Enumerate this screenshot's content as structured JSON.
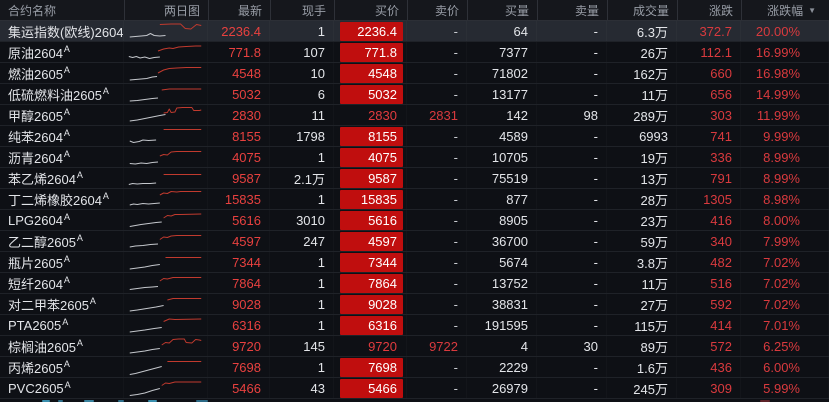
{
  "header": {
    "columns": [
      {
        "key": "name",
        "label": "合约名称"
      },
      {
        "key": "chart",
        "label": "两日图"
      },
      {
        "key": "latest",
        "label": "最新"
      },
      {
        "key": "cur_vol",
        "label": "现手"
      },
      {
        "key": "bid",
        "label": "买价"
      },
      {
        "key": "ask",
        "label": "卖价"
      },
      {
        "key": "bid_vol",
        "label": "买量"
      },
      {
        "key": "ask_vol",
        "label": "卖量"
      },
      {
        "key": "volume",
        "label": "成交量"
      },
      {
        "key": "change",
        "label": "涨跌"
      },
      {
        "key": "pct",
        "label": "涨跌幅"
      }
    ],
    "sort_icon": "▼",
    "sorted_by": "涨跌幅 descending"
  },
  "colors": {
    "background": "#0b0d10",
    "row_background": "#0e1015",
    "selected_row_background": "#262a32",
    "bid_fill_red": "#c00e0e",
    "up_red_text": "#d93a3e",
    "latest_red_text": "#e8413f",
    "white_text": "#e3e5e9",
    "header_text": "#989da6",
    "sparkline_day1": "#c5c8cd",
    "sparkline_day2": "#c13a2e"
  },
  "chart_data": {
    "type": "table",
    "title": "期货合约涨幅排行 (futures watchlist sorted by 涨跌幅)",
    "columns": [
      "合约名称",
      "最新",
      "现手",
      "买价",
      "卖价",
      "买量",
      "卖量",
      "成交量",
      "涨跌",
      "涨跌幅"
    ],
    "rows_summary": "18 contracts, all up (red), sorted by percent change 20.00% to 5.99%"
  },
  "rows": [
    {
      "name": "集运指数(欧线)2604",
      "sup": "A",
      "latest": "2236.4",
      "cur_vol": "1",
      "bid": "2236.4",
      "bid_filled": true,
      "ask": "-",
      "bid_vol": "64",
      "ask_vol": "-",
      "volume": "6.3万",
      "change": "372.7",
      "pct": "20.00%",
      "selected": true,
      "spark_gray": "4,16 10,15.5 16,15 22,14.5 26,12.5 30,14.5 36,15 42,14.5",
      "spark_red": "36,3.5 48,3 58,3 63,7.5 69,8 75,3.5 80,4.5"
    },
    {
      "name": "原油2604",
      "sup": "A",
      "latest": "771.8",
      "cur_vol": "107",
      "bid": "771.8",
      "bid_filled": true,
      "ask": "-",
      "bid_vol": "7377",
      "ask_vol": "-",
      "volume": "26万",
      "change": "112.1",
      "pct": "16.99%",
      "selected": false,
      "spark_gray": "3,14.5 7,15.5 11,14.5 15,16 20,15 25,16.5 30,15.5 36,15",
      "spark_red": "34,9 40,7 46,6 50,6.5 56,5 64,4.5 74,4 80,4"
    },
    {
      "name": "燃油2605",
      "sup": "A",
      "latest": "4548",
      "cur_vol": "10",
      "bid": "4548",
      "bid_filled": true,
      "ask": "-",
      "bid_vol": "71802",
      "ask_vol": "-",
      "volume": "162万",
      "change": "660",
      "pct": "16.98%",
      "selected": false,
      "spark_gray": "4,17 10,16.5 16,16 22,15.5 28,14 33,13.5",
      "spark_red": "34,10 40,7 46,5.5 54,5 64,4.5 80,4.5"
    },
    {
      "name": "低硫燃料油2605",
      "sup": "A",
      "latest": "5032",
      "cur_vol": "6",
      "bid": "5032",
      "bid_filled": true,
      "ask": "-",
      "bid_vol": "13177",
      "ask_vol": "-",
      "volume": "11万",
      "change": "656",
      "pct": "14.99%",
      "selected": false,
      "spark_gray": "4,17 12,16.5 20,15.5 28,14.5 34,14",
      "spark_red": "38,6 46,5 80,5"
    },
    {
      "name": "甲醇2605",
      "sup": "A",
      "latest": "2830",
      "cur_vol": "11",
      "bid": "2830",
      "bid_filled": false,
      "ask": "2831",
      "bid_vol": "142",
      "ask_vol": "98",
      "volume": "289万",
      "change": "303",
      "pct": "11.99%",
      "selected": false,
      "spark_gray": "4,16 12,15 20,13.5 28,12 36,10.5 42,9.5",
      "spark_red": "40,8 44,7.5 46,4 48,7.5 52,7 54,3 60,2.5 70,2.5 72,5.5 78,5.5 80,5"
    },
    {
      "name": "纯苯2604",
      "sup": "A",
      "latest": "8155",
      "cur_vol": "1798",
      "bid": "8155",
      "bid_filled": true,
      "ask": "-",
      "bid_vol": "4589",
      "ask_vol": "-",
      "volume": "6993",
      "change": "741",
      "pct": "9.99%",
      "selected": false,
      "spark_gray": "4,15 8,16.5 14,15.5 18,14 24,14.5 32,14",
      "spark_red": "40,3.5 80,3.5"
    },
    {
      "name": "沥青2604",
      "sup": "A",
      "latest": "4075",
      "cur_vol": "1",
      "bid": "4075",
      "bid_filled": true,
      "ask": "-",
      "bid_vol": "10705",
      "ask_vol": "-",
      "volume": "19万",
      "change": "336",
      "pct": "8.99%",
      "selected": false,
      "spark_gray": "4,16.5 10,17 16,16 22,16.5 28,15.5 34,15",
      "spark_red": "36,9 40,7.5 44,8 48,5 54,4.5 80,4.5"
    },
    {
      "name": "苯乙烯2604",
      "sup": "A",
      "latest": "9587",
      "cur_vol": "2.1万",
      "bid": "9587",
      "bid_filled": true,
      "ask": "-",
      "bid_vol": "75519",
      "ask_vol": "-",
      "volume": "13万",
      "change": "791",
      "pct": "8.99%",
      "selected": false,
      "spark_gray": "3,16.5 7,15.5 12,16 18,15.5 26,15.5 32,15",
      "spark_red": "40,6.5 80,6.5"
    },
    {
      "name": "丁二烯橡胶2604",
      "sup": "A",
      "latest": "15835",
      "cur_vol": "1",
      "bid": "15835",
      "bid_filled": true,
      "ask": "-",
      "bid_vol": "877",
      "ask_vol": "-",
      "volume": "28万",
      "change": "1305",
      "pct": "8.98%",
      "selected": false,
      "spark_gray": "4,16 8,15 12,15.5 18,14.5 24,15 30,14.5 36,14",
      "spark_red": "36,6 40,4 44,4.5 48,2.5 54,3 58,2.5 80,2.5"
    },
    {
      "name": "LPG2604",
      "sup": "A",
      "latest": "5616",
      "cur_vol": "3010",
      "bid": "5616",
      "bid_filled": true,
      "ask": "-",
      "bid_vol": "8905",
      "ask_vol": "-",
      "volume": "23万",
      "change": "416",
      "pct": "8.00%",
      "selected": false,
      "spark_gray": "4,16.5 10,15.5 16,14.5 24,13.5 32,12.5 38,12",
      "spark_red": "40,8 44,5.5 48,6 52,4.5 58,4.5 80,4"
    },
    {
      "name": "乙二醇2605",
      "sup": "A",
      "latest": "4597",
      "cur_vol": "247",
      "bid": "4597",
      "bid_filled": true,
      "ask": "-",
      "bid_vol": "36700",
      "ask_vol": "-",
      "volume": "59万",
      "change": "340",
      "pct": "7.99%",
      "selected": false,
      "spark_gray": "4,16 10,15 18,14.5 26,13.5 34,13",
      "spark_red": "36,8.5 40,6 44,6.5 48,5 54,4.5 80,4.5"
    },
    {
      "name": "瓶片2605",
      "sup": "A",
      "latest": "7344",
      "cur_vol": "1",
      "bid": "7344",
      "bid_filled": true,
      "ask": "-",
      "bid_vol": "5674",
      "ask_vol": "-",
      "volume": "3.8万",
      "change": "482",
      "pct": "7.02%",
      "selected": false,
      "spark_gray": "4,17 12,16 20,15 28,13.5 36,12.5",
      "spark_red": "42,5.5 80,5.5"
    },
    {
      "name": "短纤2604",
      "sup": "A",
      "latest": "7864",
      "cur_vol": "1",
      "bid": "7864",
      "bid_filled": true,
      "ask": "-",
      "bid_vol": "13752",
      "ask_vol": "-",
      "volume": "11万",
      "change": "516",
      "pct": "7.02%",
      "selected": false,
      "spark_gray": "4,16.5 12,15.5 20,14.5 28,14 34,13.5",
      "spark_red": "36,8 40,5.5 44,6 50,4.5 80,4.5"
    },
    {
      "name": "对二甲苯2605",
      "sup": "A",
      "latest": "9028",
      "cur_vol": "1",
      "bid": "9028",
      "bid_filled": true,
      "ask": "-",
      "bid_vol": "38831",
      "ask_vol": "-",
      "volume": "27万",
      "change": "592",
      "pct": "7.02%",
      "selected": false,
      "spark_gray": "4,17 12,16 22,14.5 32,13 40,11.5",
      "spark_red": "44,6 50,4.5 80,4.5"
    },
    {
      "name": "PTA2605",
      "sup": "A",
      "latest": "6316",
      "cur_vol": "1",
      "bid": "6316",
      "bid_filled": true,
      "ask": "-",
      "bid_vol": "191595",
      "ask_vol": "-",
      "volume": "115万",
      "change": "414",
      "pct": "7.01%",
      "selected": false,
      "spark_gray": "4,17 12,16 20,15 30,13.5 38,12.5",
      "spark_red": "40,6.5 46,4 52,4.5 80,4"
    },
    {
      "name": "棕榈油2605",
      "sup": "A",
      "latest": "9720",
      "cur_vol": "145",
      "bid": "9720",
      "bid_filled": false,
      "ask": "9722",
      "bid_vol": "4",
      "ask_vol": "30",
      "volume": "89万",
      "change": "572",
      "pct": "6.25%",
      "selected": false,
      "spark_gray": "4,17 12,16 20,15 28,13.5 36,12.5",
      "spark_red": "38,9 42,6.5 46,7 50,3.5 56,3 62,3 64,6.5 70,7 74,3.5 78,4 80,4.5"
    },
    {
      "name": "丙烯2605",
      "sup": "A",
      "latest": "7698",
      "cur_vol": "1",
      "bid": "7698",
      "bid_filled": true,
      "ask": "-",
      "bid_vol": "2229",
      "ask_vol": "-",
      "volume": "1.6万",
      "change": "436",
      "pct": "6.00%",
      "selected": false,
      "spark_gray": "4,17.5 10,16.5 16,15 24,13 32,11 38,9.5",
      "spark_red": "44,4.5 80,4.5"
    },
    {
      "name": "PVC2605",
      "sup": "A",
      "latest": "5466",
      "cur_vol": "43",
      "bid": "5466",
      "bid_filled": true,
      "ask": "-",
      "bid_vol": "26979",
      "ask_vol": "-",
      "volume": "245万",
      "change": "309",
      "pct": "5.99%",
      "selected": false,
      "spark_gray": "4,17.5 12,16.5 20,15 28,12.5 36,10.5",
      "spark_red": "38,7.5 42,5 46,5.5 52,4 60,4 80,4"
    }
  ]
}
